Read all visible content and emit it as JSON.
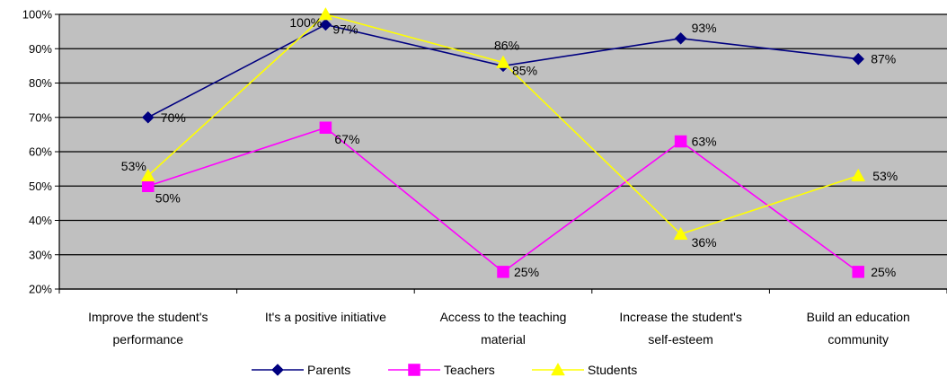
{
  "chart_data": {
    "type": "line",
    "title": "",
    "xlabel": "",
    "ylabel": "",
    "ylim": [
      20,
      100
    ],
    "yticks": [
      20,
      30,
      40,
      50,
      60,
      70,
      80,
      90,
      100
    ],
    "ytick_labels": [
      "20%",
      "30%",
      "40%",
      "50%",
      "60%",
      "70%",
      "80%",
      "90%",
      "100%"
    ],
    "grid": true,
    "plot_background": "#C0C0C0",
    "legend_position": "bottom",
    "categories": [
      [
        "Improve the student's",
        "performance"
      ],
      [
        "It's a positive initiative"
      ],
      [
        "Access to the teaching",
        "material"
      ],
      [
        "Increase the student's",
        "self-esteem"
      ],
      [
        "Build an education",
        "community"
      ]
    ],
    "series": [
      {
        "name": "Parents",
        "color": "#000080",
        "marker": "diamond",
        "values": [
          70,
          97,
          85,
          93,
          87
        ],
        "labels": [
          "70%",
          "97%",
          "85%",
          "93%",
          "87%"
        ]
      },
      {
        "name": "Teachers",
        "color": "#FF00FF",
        "marker": "square",
        "values": [
          50,
          67,
          25,
          63,
          25
        ],
        "labels": [
          "50%",
          "67%",
          "25%",
          "63%",
          "25%"
        ]
      },
      {
        "name": "Students",
        "color": "#FFFF00",
        "marker": "triangle",
        "values": [
          53,
          100,
          86,
          36,
          53
        ],
        "labels": [
          "53%",
          "100%",
          "86%",
          "36%",
          "53%"
        ]
      }
    ]
  }
}
